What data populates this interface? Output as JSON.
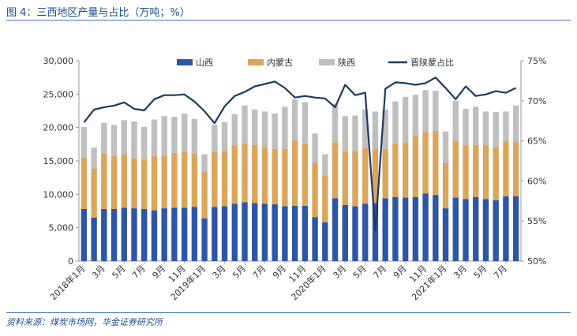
{
  "figure_title": "图 4：三西地区产量与占比（万吨；%）",
  "source": "资料来源：煤炭市场网，华金证券研究所",
  "colors": {
    "shanxi": "#2e56a6",
    "neimenggu": "#dba55b",
    "shaanxi": "#bfbfbf",
    "line": "#1f3864",
    "accent": "#4472c4"
  },
  "chart_data": {
    "type": "bar",
    "stacked": true,
    "title": "",
    "xlabel": "",
    "ylabel": "",
    "ylim": [
      0,
      30000
    ],
    "y2lim": [
      50,
      75
    ],
    "yticks": [
      "0",
      "5,000",
      "10,000",
      "15,000",
      "20,000",
      "25,000",
      "30,000"
    ],
    "y2ticks": [
      "50%",
      "55%",
      "60%",
      "65%",
      "70%",
      "75%"
    ],
    "xtick_labels": [
      "2018年1月",
      "3月",
      "5月",
      "7月",
      "9月",
      "11月",
      "2019年1月",
      "3月",
      "5月",
      "7月",
      "9月",
      "11月",
      "2020年1月",
      "3月",
      "5月",
      "7月",
      "9月",
      "11月",
      "2021年1月",
      "3月",
      "5月",
      "7月"
    ],
    "legend_position": "top",
    "grid": false,
    "categories": [
      "2018-01",
      "2018-02",
      "2018-03",
      "2018-04",
      "2018-05",
      "2018-06",
      "2018-07",
      "2018-08",
      "2018-09",
      "2018-10",
      "2018-11",
      "2018-12",
      "2019-01",
      "2019-02",
      "2019-03",
      "2019-04",
      "2019-05",
      "2019-06",
      "2019-07",
      "2019-08",
      "2019-09",
      "2019-10",
      "2019-11",
      "2019-12",
      "2020-01",
      "2020-02",
      "2020-03",
      "2020-04",
      "2020-05",
      "2020-06",
      "2020-07",
      "2020-08",
      "2020-09",
      "2020-10",
      "2020-11",
      "2020-12",
      "2021-01",
      "2021-02",
      "2021-03",
      "2021-04",
      "2021-05",
      "2021-06",
      "2021-07",
      "2021-08"
    ],
    "series": [
      {
        "name": "山西",
        "axis": "left",
        "kind": "bar",
        "values": [
          7800,
          6500,
          7800,
          7800,
          8000,
          7900,
          7800,
          7600,
          7900,
          8000,
          8000,
          8100,
          6400,
          8100,
          8200,
          8600,
          8800,
          8700,
          8600,
          8500,
          8200,
          8300,
          8300,
          6600,
          5800,
          9400,
          8400,
          8200,
          8600,
          8700,
          9400,
          9600,
          9500,
          9600,
          10100,
          9900,
          7900,
          9500,
          9300,
          9600,
          9300,
          9100,
          9700,
          9700
        ]
      },
      {
        "name": "内蒙古",
        "axis": "left",
        "kind": "bar",
        "values": [
          7700,
          7400,
          8300,
          7900,
          8000,
          7500,
          7300,
          8100,
          7900,
          8200,
          8400,
          8000,
          7000,
          8200,
          8300,
          8700,
          8800,
          8700,
          8500,
          8300,
          8600,
          9800,
          9200,
          8100,
          7000,
          8400,
          8100,
          8300,
          8300,
          8100,
          7400,
          8000,
          8200,
          9200,
          9200,
          9600,
          6800,
          8500,
          8000,
          7800,
          8000,
          8000,
          8200,
          8100
        ]
      },
      {
        "name": "陕西",
        "axis": "left",
        "kind": "bar",
        "values": [
          4600,
          3100,
          4600,
          4700,
          5100,
          5500,
          5000,
          5500,
          5900,
          5400,
          5700,
          5200,
          2600,
          4100,
          4300,
          4700,
          5700,
          5300,
          5300,
          5300,
          6300,
          6100,
          6300,
          4400,
          3200,
          5700,
          5200,
          5300,
          5800,
          5600,
          5900,
          6300,
          6900,
          6100,
          6300,
          6000,
          4700,
          6000,
          5500,
          5700,
          5100,
          5200,
          4500,
          5500
        ]
      },
      {
        "name": "晋陕蒙占比",
        "axis": "right",
        "kind": "line",
        "values": [
          67.3,
          68.9,
          69.2,
          69.4,
          69.8,
          69.0,
          68.8,
          70.2,
          70.7,
          70.7,
          70.8,
          69.9,
          68.7,
          67.2,
          69.3,
          70.6,
          71.1,
          71.8,
          72.1,
          72.4,
          71.6,
          70.4,
          70.6,
          70.4,
          70.3,
          69.2,
          72.0,
          70.7,
          71.0,
          53.8,
          71.5,
          72.3,
          72.2,
          72.0,
          72.2,
          72.9,
          71.6,
          70.2,
          71.8,
          70.6,
          70.8,
          71.2,
          71.0,
          71.6
        ]
      }
    ]
  }
}
